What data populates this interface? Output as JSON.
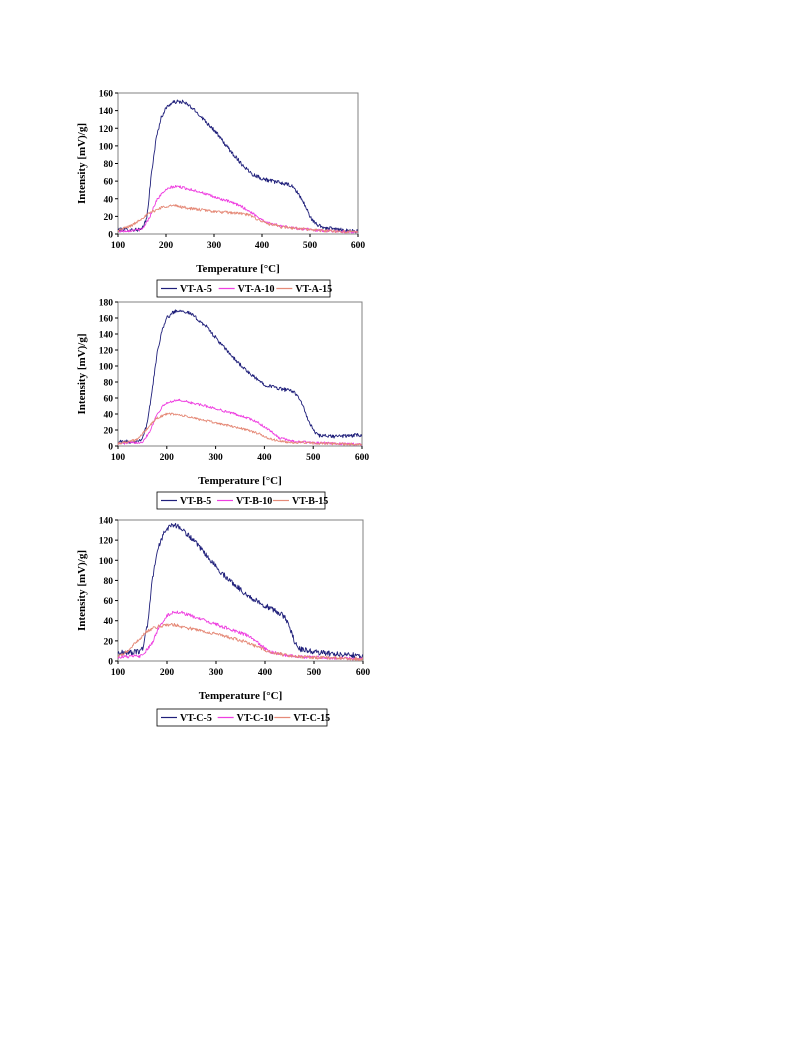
{
  "chart_data": [
    {
      "type": "line",
      "xlabel": "Temperature [°C]",
      "ylabel": "Intensity [mV)/g]",
      "xlim": [
        100,
        600
      ],
      "ylim": [
        0,
        160
      ],
      "xticks": [
        100,
        200,
        300,
        400,
        500,
        600
      ],
      "yticks": [
        0,
        20,
        40,
        60,
        80,
        100,
        120,
        140,
        160
      ],
      "grid": false,
      "legend": "bottom",
      "series": [
        {
          "name": "VT-A-5",
          "color": "#1f1f7a",
          "noise": 2.2,
          "points": [
            [
              100,
              5
            ],
            [
              150,
              5
            ],
            [
              160,
              18
            ],
            [
              170,
              70
            ],
            [
              180,
              110
            ],
            [
              190,
              132
            ],
            [
              200,
              143
            ],
            [
              210,
              148
            ],
            [
              220,
              150
            ],
            [
              235,
              150
            ],
            [
              250,
              145
            ],
            [
              270,
              135
            ],
            [
              300,
              118
            ],
            [
              330,
              97
            ],
            [
              360,
              78
            ],
            [
              380,
              68
            ],
            [
              400,
              63
            ],
            [
              420,
              60
            ],
            [
              440,
              58
            ],
            [
              460,
              55
            ],
            [
              470,
              50
            ],
            [
              480,
              42
            ],
            [
              490,
              32
            ],
            [
              500,
              20
            ],
            [
              510,
              12
            ],
            [
              530,
              7
            ],
            [
              560,
              5
            ],
            [
              600,
              3
            ]
          ]
        },
        {
          "name": "VT-A-10",
          "color": "#ee3ee0",
          "noise": 1.5,
          "points": [
            [
              100,
              3
            ],
            [
              150,
              5
            ],
            [
              165,
              18
            ],
            [
              180,
              38
            ],
            [
              195,
              48
            ],
            [
              210,
              53
            ],
            [
              225,
              54
            ],
            [
              240,
              52
            ],
            [
              270,
              48
            ],
            [
              300,
              42
            ],
            [
              330,
              37
            ],
            [
              355,
              32
            ],
            [
              370,
              27
            ],
            [
              390,
              20
            ],
            [
              410,
              13
            ],
            [
              440,
              9
            ],
            [
              480,
              6
            ],
            [
              520,
              4
            ],
            [
              560,
              3
            ],
            [
              600,
              2
            ]
          ]
        },
        {
          "name": "VT-A-15",
          "color": "#e58a78",
          "noise": 1.6,
          "points": [
            [
              100,
              4
            ],
            [
              130,
              10
            ],
            [
              150,
              18
            ],
            [
              170,
              25
            ],
            [
              190,
              30
            ],
            [
              205,
              32
            ],
            [
              220,
              32
            ],
            [
              250,
              29
            ],
            [
              280,
              27
            ],
            [
              310,
              25
            ],
            [
              340,
              24
            ],
            [
              360,
              23
            ],
            [
              375,
              21
            ],
            [
              390,
              17
            ],
            [
              410,
              12
            ],
            [
              440,
              8
            ],
            [
              480,
              6
            ],
            [
              520,
              4
            ],
            [
              560,
              3
            ],
            [
              600,
              2
            ]
          ]
        }
      ],
      "legend_box": true
    },
    {
      "type": "line",
      "xlabel": "Temperature [°C]",
      "ylabel": "Intensity [mV)/g]",
      "xlim": [
        100,
        600
      ],
      "ylim": [
        0,
        180
      ],
      "xticks": [
        100,
        200,
        300,
        400,
        500,
        600
      ],
      "yticks": [
        0,
        20,
        40,
        60,
        80,
        100,
        120,
        140,
        160,
        180
      ],
      "grid": false,
      "legend": "bottom",
      "series": [
        {
          "name": "VT-B-5",
          "color": "#1f1f7a",
          "noise": 2.3,
          "points": [
            [
              100,
              5
            ],
            [
              140,
              6
            ],
            [
              150,
              10
            ],
            [
              160,
              28
            ],
            [
              170,
              70
            ],
            [
              180,
              115
            ],
            [
              190,
              145
            ],
            [
              200,
              160
            ],
            [
              215,
              168
            ],
            [
              230,
              170
            ],
            [
              250,
              165
            ],
            [
              280,
              150
            ],
            [
              310,
              128
            ],
            [
              340,
              108
            ],
            [
              370,
              90
            ],
            [
              400,
              77
            ],
            [
              430,
              72
            ],
            [
              460,
              68
            ],
            [
              470,
              62
            ],
            [
              480,
              48
            ],
            [
              490,
              32
            ],
            [
              500,
              20
            ],
            [
              510,
              13
            ],
            [
              540,
              12
            ],
            [
              580,
              13
            ],
            [
              600,
              14
            ]
          ]
        },
        {
          "name": "VT-B-10",
          "color": "#ee3ee0",
          "noise": 1.5,
          "points": [
            [
              100,
              3
            ],
            [
              150,
              5
            ],
            [
              165,
              18
            ],
            [
              180,
              40
            ],
            [
              195,
              52
            ],
            [
              215,
              57
            ],
            [
              230,
              57
            ],
            [
              250,
              54
            ],
            [
              280,
              50
            ],
            [
              310,
              45
            ],
            [
              340,
              40
            ],
            [
              370,
              34
            ],
            [
              390,
              28
            ],
            [
              410,
              20
            ],
            [
              430,
              10
            ],
            [
              460,
              6
            ],
            [
              500,
              4
            ],
            [
              550,
              3
            ],
            [
              600,
              2
            ]
          ]
        },
        {
          "name": "VT-B-15",
          "color": "#e58a78",
          "noise": 1.5,
          "points": [
            [
              100,
              3
            ],
            [
              140,
              8
            ],
            [
              160,
              22
            ],
            [
              180,
              35
            ],
            [
              200,
              40
            ],
            [
              215,
              40
            ],
            [
              240,
              37
            ],
            [
              270,
              33
            ],
            [
              300,
              29
            ],
            [
              330,
              25
            ],
            [
              360,
              21
            ],
            [
              390,
              15
            ],
            [
              410,
              9
            ],
            [
              440,
              5
            ],
            [
              480,
              4
            ],
            [
              530,
              3
            ],
            [
              600,
              2
            ]
          ]
        }
      ],
      "legend_box": true
    },
    {
      "type": "line",
      "xlabel": "Temperature [°C]",
      "ylabel": "Intensity [mV)/g]",
      "xlim": [
        100,
        600
      ],
      "ylim": [
        0,
        140
      ],
      "xticks": [
        100,
        200,
        300,
        400,
        500,
        600
      ],
      "yticks": [
        0,
        20,
        40,
        60,
        80,
        100,
        120,
        140
      ],
      "grid": false,
      "legend": "bottom",
      "series": [
        {
          "name": "VT-C-5",
          "color": "#1f1f7a",
          "noise": 2.6,
          "points": [
            [
              100,
              8
            ],
            [
              140,
              9
            ],
            [
              150,
              12
            ],
            [
              160,
              35
            ],
            [
              170,
              80
            ],
            [
              180,
              110
            ],
            [
              195,
              128
            ],
            [
              210,
              136
            ],
            [
              225,
              133
            ],
            [
              250,
              122
            ],
            [
              280,
              105
            ],
            [
              310,
              88
            ],
            [
              340,
              75
            ],
            [
              370,
              63
            ],
            [
              400,
              55
            ],
            [
              420,
              50
            ],
            [
              440,
              44
            ],
            [
              450,
              34
            ],
            [
              460,
              20
            ],
            [
              470,
              12
            ],
            [
              500,
              9
            ],
            [
              540,
              7
            ],
            [
              580,
              6
            ],
            [
              600,
              5
            ]
          ]
        },
        {
          "name": "VT-C-10",
          "color": "#ee3ee0",
          "noise": 1.6,
          "points": [
            [
              100,
              4
            ],
            [
              150,
              5
            ],
            [
              170,
              18
            ],
            [
              185,
              35
            ],
            [
              200,
              45
            ],
            [
              215,
              49
            ],
            [
              230,
              48
            ],
            [
              260,
              43
            ],
            [
              290,
              38
            ],
            [
              320,
              33
            ],
            [
              350,
              28
            ],
            [
              370,
              24
            ],
            [
              390,
              16
            ],
            [
              410,
              9
            ],
            [
              440,
              6
            ],
            [
              480,
              4
            ],
            [
              540,
              3
            ],
            [
              600,
              2
            ]
          ]
        },
        {
          "name": "VT-C-15",
          "color": "#e58a78",
          "noise": 1.6,
          "points": [
            [
              100,
              4
            ],
            [
              120,
              10
            ],
            [
              140,
              20
            ],
            [
              160,
              30
            ],
            [
              180,
              34
            ],
            [
              200,
              36
            ],
            [
              215,
              36
            ],
            [
              240,
              33
            ],
            [
              270,
              30
            ],
            [
              300,
              27
            ],
            [
              330,
              23
            ],
            [
              360,
              19
            ],
            [
              390,
              13
            ],
            [
              410,
              9
            ],
            [
              440,
              6
            ],
            [
              480,
              4
            ],
            [
              540,
              3
            ],
            [
              600,
              2
            ]
          ]
        }
      ],
      "legend_box": true
    }
  ]
}
